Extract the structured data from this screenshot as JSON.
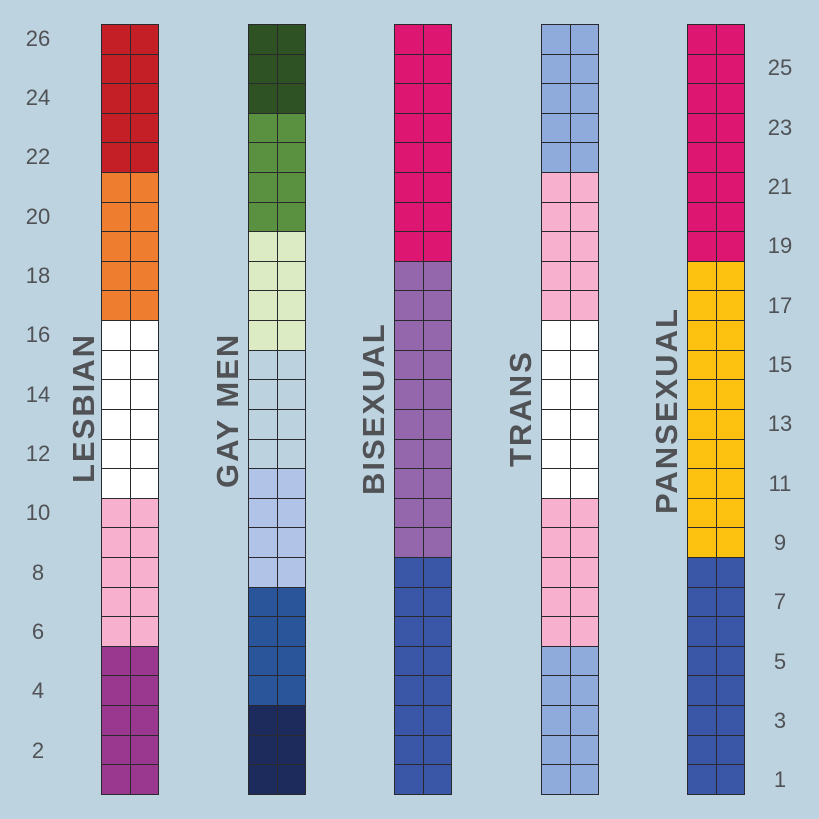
{
  "flags": [
    {
      "name": "LESBIAN",
      "segments": [
        {
          "color": "#c41f26",
          "rows": 5
        },
        {
          "color": "#ef7d30",
          "rows": 5
        },
        {
          "color": "#ffffff",
          "rows": 6
        },
        {
          "color": "#f7b1cf",
          "rows": 5
        },
        {
          "color": "#9a378f",
          "rows": 5
        }
      ]
    },
    {
      "name": "GAY MEN",
      "segments": [
        {
          "color": "#2f5225",
          "rows": 3
        },
        {
          "color": "#5a9140",
          "rows": 4
        },
        {
          "color": "#ddebc4",
          "rows": 4
        },
        {
          "color": "#bcd3df",
          "rows": 4
        },
        {
          "color": "#b1c3e6",
          "rows": 4
        },
        {
          "color": "#2a559a",
          "rows": 4
        },
        {
          "color": "#1d2a5c",
          "rows": 3
        }
      ]
    },
    {
      "name": "BISEXUAL",
      "segments": [
        {
          "color": "#dd1672",
          "rows": 8
        },
        {
          "color": "#9466ac",
          "rows": 10
        },
        {
          "color": "#3a57a7",
          "rows": 8
        }
      ]
    },
    {
      "name": "TRANS",
      "segments": [
        {
          "color": "#8fabdb",
          "rows": 5
        },
        {
          "color": "#f7b1cf",
          "rows": 5
        },
        {
          "color": "#ffffff",
          "rows": 6
        },
        {
          "color": "#f7b1cf",
          "rows": 5
        },
        {
          "color": "#8fabdb",
          "rows": 5
        }
      ]
    },
    {
      "name": "PANSEXUAL",
      "segments": [
        {
          "color": "#dd1672",
          "rows": 8
        },
        {
          "color": "#fdc110",
          "rows": 10
        },
        {
          "color": "#3a57a7",
          "rows": 8
        }
      ]
    }
  ],
  "left_ticks": [
    "26",
    "24",
    "22",
    "20",
    "18",
    "16",
    "14",
    "12",
    "10",
    "8",
    "6",
    "4",
    "2"
  ],
  "right_ticks": [
    "25",
    "23",
    "21",
    "19",
    "17",
    "15",
    "13",
    "11",
    "9",
    "7",
    "5",
    "3",
    "1"
  ],
  "background": "#bdd3e0",
  "total_rows": 26
}
